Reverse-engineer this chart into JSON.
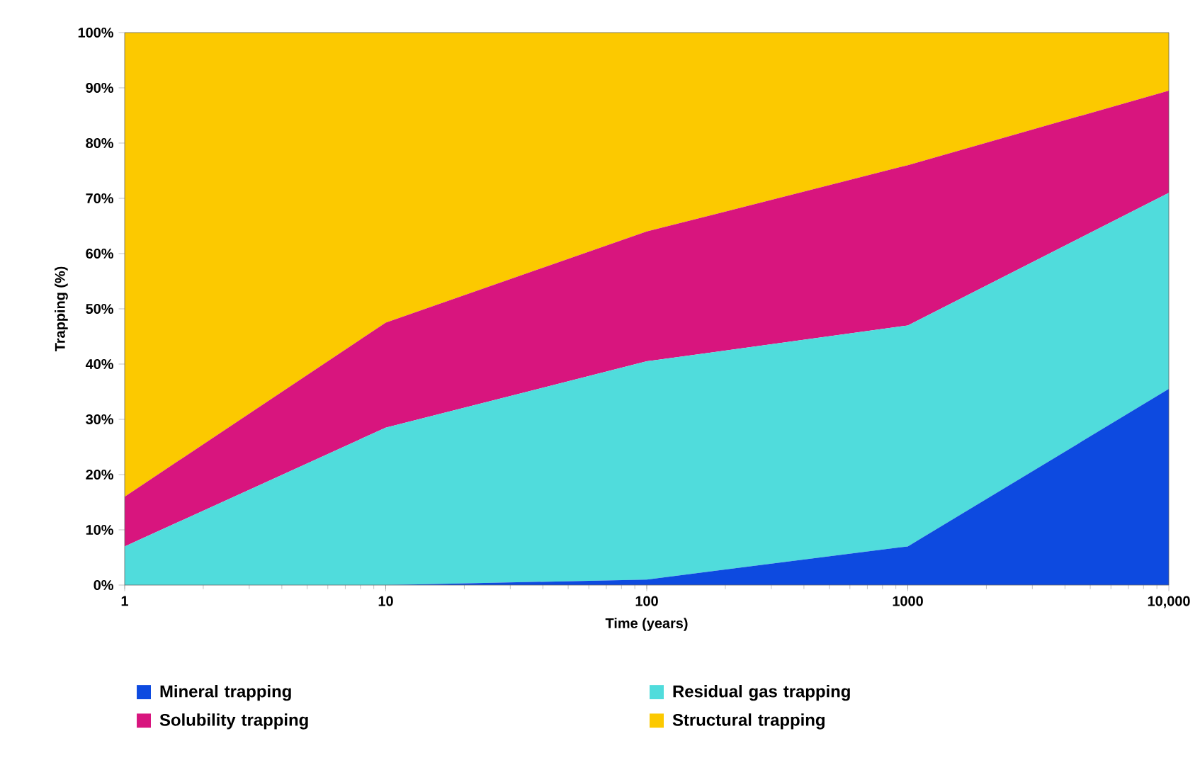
{
  "chart_data": {
    "type": "area",
    "stacked": true,
    "xlabel": "Time (years)",
    "ylabel": "Trapping (%)",
    "log": "x",
    "x": [
      1,
      10,
      100,
      1000,
      10000
    ],
    "series": [
      {
        "name": "Mineral trapping",
        "color": "#0d4ae0",
        "values": [
          0,
          0,
          1,
          7,
          35.5
        ]
      },
      {
        "name": "Residual gas trapping",
        "color": "#50dcdc",
        "values": [
          7,
          28.5,
          39.5,
          40,
          35.5
        ]
      },
      {
        "name": "Solubility trapping",
        "color": "#d8157e",
        "values": [
          9,
          19,
          23.5,
          29,
          18.5
        ]
      },
      {
        "name": "Structural trapping",
        "color": "#fcc900",
        "values": [
          84,
          52.5,
          36,
          24,
          10.5
        ]
      }
    ],
    "xlim": [
      1,
      10000
    ],
    "ylim": [
      0,
      100
    ],
    "xticks": [
      1,
      10,
      100,
      1000,
      {
        "value": 10000,
        "label": "10,000"
      }
    ],
    "yticks": [
      {
        "value": 0,
        "label": "0%"
      },
      {
        "value": 10,
        "label": "10%"
      },
      {
        "value": 20,
        "label": "20%"
      },
      {
        "value": 30,
        "label": "30%"
      },
      {
        "value": 40,
        "label": "40%"
      },
      {
        "value": 50,
        "label": "50%"
      },
      {
        "value": 60,
        "label": "60%"
      },
      {
        "value": 70,
        "label": "70%"
      },
      {
        "value": 80,
        "label": "80%"
      },
      {
        "value": 90,
        "label": "90%"
      },
      {
        "value": 100,
        "label": "100%"
      }
    ],
    "legend": "bottom",
    "grid": false
  }
}
